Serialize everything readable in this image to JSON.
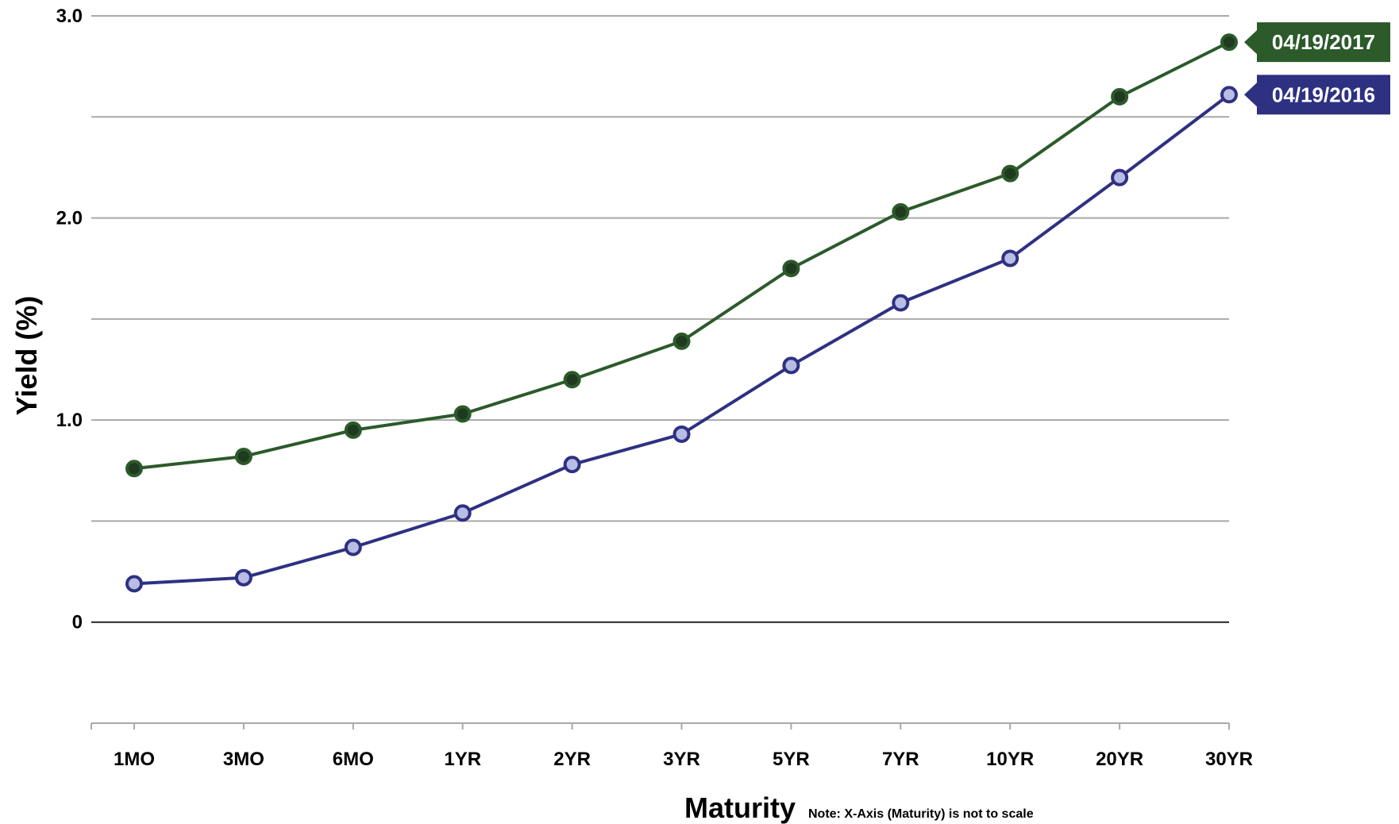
{
  "chart_data": {
    "type": "line",
    "categories": [
      "1MO",
      "3MO",
      "6MO",
      "1YR",
      "2YR",
      "3YR",
      "5YR",
      "7YR",
      "10YR",
      "20YR",
      "30YR"
    ],
    "series": [
      {
        "name": "04/19/2017",
        "values": [
          0.76,
          0.82,
          0.95,
          1.03,
          1.2,
          1.39,
          1.75,
          2.03,
          2.22,
          2.6,
          2.87
        ],
        "color": "#2c5a2b",
        "marker_color": "#1f3a1f"
      },
      {
        "name": "04/19/2016",
        "values": [
          0.19,
          0.22,
          0.37,
          0.54,
          0.78,
          0.93,
          1.27,
          1.58,
          1.8,
          2.2,
          2.61
        ],
        "color": "#2e3181",
        "marker_color": "#b9bde5"
      }
    ],
    "ylim": [
      -0.5,
      3.0
    ],
    "yticks": [
      {
        "value": 3.0,
        "label": "3.0"
      },
      {
        "value": 2.5,
        "label": ""
      },
      {
        "value": 2.0,
        "label": "2.0"
      },
      {
        "value": 1.5,
        "label": ""
      },
      {
        "value": 1.0,
        "label": "1.0"
      },
      {
        "value": 0.5,
        "label": ""
      },
      {
        "value": 0,
        "label": "0"
      }
    ],
    "xlabel": "Maturity",
    "ylabel": "Yield (%)",
    "note": "Note: X-Axis (Maturity) is not to scale",
    "grid": true,
    "legend": "right, at series end"
  }
}
